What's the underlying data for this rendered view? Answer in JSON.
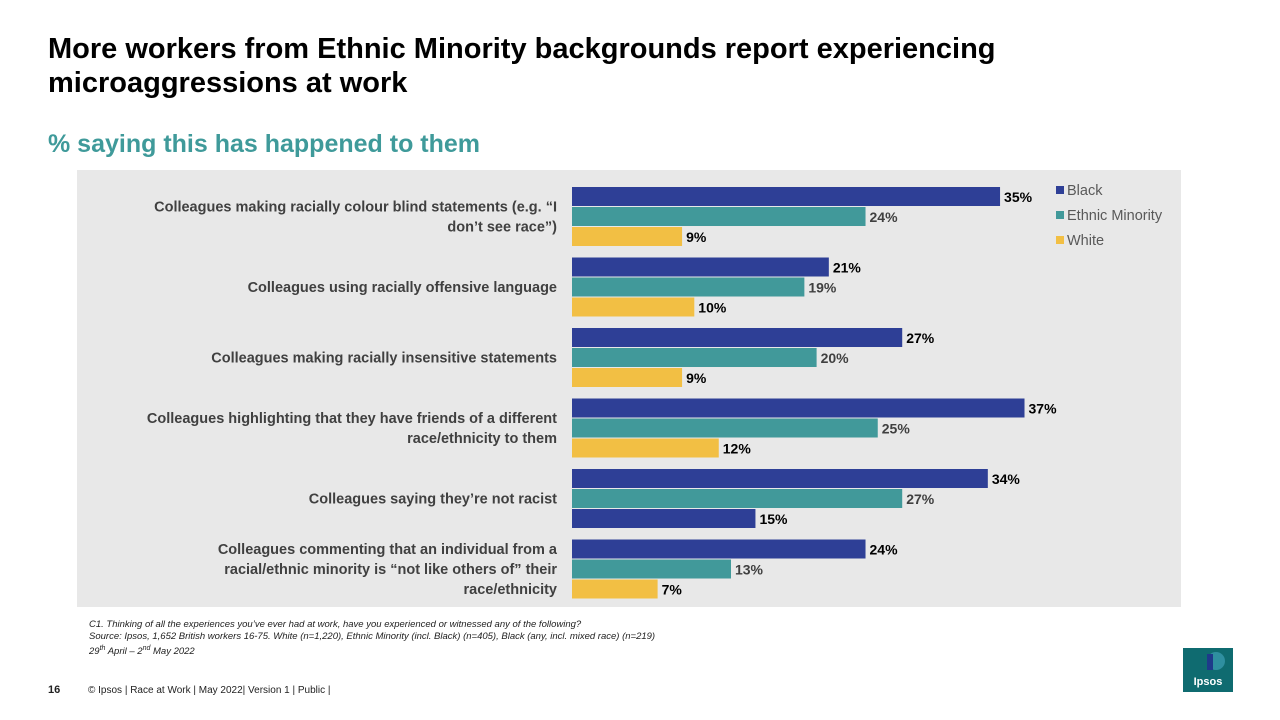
{
  "title": "More workers from Ethnic Minority backgrounds report experiencing microaggressions at work",
  "subtitle": "% saying this has happened to them",
  "colors": {
    "black": "#2e3f96",
    "ethnic_minority": "#41999a",
    "white": "#f2bf44",
    "subtitle": "#3f9a9a",
    "panel": "#e8e8e8"
  },
  "chart_data": {
    "type": "bar",
    "orientation": "horizontal",
    "value_suffix": "%",
    "xlim": [
      0,
      40
    ],
    "legend_position": "top-right",
    "grid": false,
    "categories": [
      [
        "Colleagues making racially colour blind statements (e.g. “I",
        "don’t see race”)"
      ],
      [
        "Colleagues using racially offensive language"
      ],
      [
        "Colleagues making racially insensitive statements"
      ],
      [
        "Colleagues highlighting that they have friends of a different",
        "race/ethnicity to them"
      ],
      [
        "Colleagues saying they’re not racist"
      ],
      [
        "Colleagues commenting that an individual from a",
        "racial/ethnic minority is “not like others of” their",
        "race/ethnicity"
      ]
    ],
    "series": [
      {
        "name": "Black",
        "color_key": "black",
        "values": [
          35,
          21,
          27,
          37,
          34,
          24
        ]
      },
      {
        "name": "Ethnic Minority",
        "color_key": "ethnic_minority",
        "values": [
          24,
          19,
          20,
          25,
          27,
          13
        ]
      },
      {
        "name": "White",
        "color_key": "white",
        "values": [
          9,
          10,
          9,
          12,
          15,
          7
        ]
      }
    ],
    "bar_color_overrides": [
      {
        "series": 2,
        "category": 4,
        "color_key": "black"
      }
    ]
  },
  "notes": {
    "question": "C1. Thinking of all the experiences you’ve ever had at work, have you experienced or witnessed any of the following?",
    "source": "Source: Ipsos, 1,652 British workers 16-75. White (n=1,220), Ethnic Minority (incl. Black) (n=405), Black (any, incl. mixed race) (n=219)",
    "date_prefix": "29",
    "date_sup1": "th",
    "date_mid": " April – 2",
    "date_sup2": "nd",
    "date_suffix": " May 2022"
  },
  "footer": {
    "page_number": "16",
    "text": "© Ipsos | Race at Work | May 2022| Version 1 | Public |"
  },
  "logo": {
    "text": "Ipsos"
  }
}
